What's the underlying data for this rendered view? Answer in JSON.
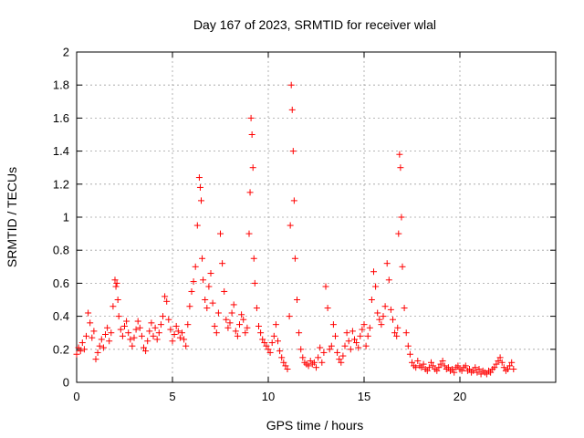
{
  "chart_data": {
    "type": "scatter",
    "title": "Day 167 of 2023, SRMTID for receiver wlal",
    "xlabel": "GPS time / hours",
    "ylabel": "SRMTID / TECUs",
    "xlim": [
      0,
      25
    ],
    "ylim": [
      0,
      2
    ],
    "xticks": [
      0,
      5,
      10,
      15,
      20
    ],
    "yticks": [
      0,
      0.2,
      0.4,
      0.6,
      0.8,
      1,
      1.2,
      1.4,
      1.6,
      1.8,
      2
    ],
    "ytick_labels": [
      "0",
      "0.2",
      "0.4",
      "0.6",
      "0.8",
      "1",
      "1.2",
      "1.4",
      "1.6",
      "1.8",
      "2"
    ],
    "xtick_labels": [
      "0",
      "5",
      "10",
      "15",
      "20"
    ],
    "grid": true,
    "marker": "plus",
    "marker_color": "#ff0000",
    "series": [
      {
        "name": "SRMTID",
        "x": [
          0.0,
          0.1,
          0.2,
          0.3,
          0.4,
          0.5,
          0.6,
          0.7,
          0.8,
          0.9,
          1.0,
          1.1,
          1.2,
          1.3,
          1.4,
          1.5,
          1.6,
          1.7,
          1.8,
          1.9,
          2.0,
          2.05,
          2.1,
          2.15,
          2.2,
          2.3,
          2.4,
          2.5,
          2.6,
          2.7,
          2.8,
          2.9,
          3.0,
          3.1,
          3.2,
          3.3,
          3.4,
          3.5,
          3.6,
          3.7,
          3.8,
          3.9,
          4.0,
          4.1,
          4.2,
          4.3,
          4.4,
          4.5,
          4.6,
          4.7,
          4.8,
          4.9,
          5.0,
          5.1,
          5.2,
          5.3,
          5.4,
          5.5,
          5.6,
          5.7,
          5.8,
          5.9,
          6.0,
          6.1,
          6.2,
          6.3,
          6.4,
          6.45,
          6.5,
          6.55,
          6.6,
          6.7,
          6.8,
          6.9,
          7.0,
          7.1,
          7.2,
          7.3,
          7.4,
          7.5,
          7.6,
          7.7,
          7.8,
          7.9,
          8.0,
          8.1,
          8.2,
          8.3,
          8.4,
          8.5,
          8.6,
          8.7,
          8.8,
          8.9,
          9.0,
          9.05,
          9.1,
          9.15,
          9.2,
          9.25,
          9.3,
          9.4,
          9.5,
          9.6,
          9.7,
          9.8,
          9.9,
          10.0,
          10.1,
          10.2,
          10.3,
          10.4,
          10.5,
          10.6,
          10.7,
          10.8,
          10.9,
          11.0,
          11.1,
          11.15,
          11.2,
          11.25,
          11.3,
          11.35,
          11.4,
          11.5,
          11.6,
          11.7,
          11.8,
          11.9,
          12.0,
          12.1,
          12.2,
          12.3,
          12.4,
          12.5,
          12.6,
          12.7,
          12.8,
          12.9,
          13.0,
          13.1,
          13.2,
          13.3,
          13.4,
          13.5,
          13.6,
          13.7,
          13.8,
          13.9,
          14.0,
          14.1,
          14.2,
          14.3,
          14.4,
          14.5,
          14.6,
          14.7,
          14.8,
          14.9,
          15.0,
          15.1,
          15.2,
          15.3,
          15.4,
          15.5,
          15.6,
          15.7,
          15.8,
          15.9,
          16.0,
          16.1,
          16.2,
          16.3,
          16.4,
          16.5,
          16.6,
          16.7,
          16.75,
          16.8,
          16.85,
          16.9,
          16.95,
          17.0,
          17.1,
          17.2,
          17.3,
          17.4,
          17.5,
          17.6,
          17.7,
          17.8,
          17.9,
          18.0,
          18.1,
          18.2,
          18.3,
          18.4,
          18.5,
          18.6,
          18.7,
          18.8,
          18.9,
          19.0,
          19.1,
          19.2,
          19.3,
          19.4,
          19.5,
          19.6,
          19.7,
          19.8,
          19.9,
          20.0,
          20.1,
          20.2,
          20.3,
          20.4,
          20.5,
          20.6,
          20.7,
          20.8,
          20.9,
          21.0,
          21.1,
          21.2,
          21.3,
          21.4,
          21.5,
          21.6,
          21.7,
          21.8,
          21.9,
          22.0,
          22.1,
          22.2,
          22.3,
          22.4,
          22.5,
          22.6,
          22.7,
          22.8
        ],
        "y": [
          0.17,
          0.21,
          0.19,
          0.24,
          0.2,
          0.28,
          0.42,
          0.36,
          0.27,
          0.31,
          0.14,
          0.18,
          0.22,
          0.26,
          0.21,
          0.29,
          0.33,
          0.25,
          0.3,
          0.46,
          0.62,
          0.58,
          0.6,
          0.5,
          0.4,
          0.32,
          0.28,
          0.34,
          0.37,
          0.3,
          0.26,
          0.22,
          0.27,
          0.32,
          0.37,
          0.33,
          0.28,
          0.21,
          0.19,
          0.25,
          0.31,
          0.36,
          0.28,
          0.33,
          0.26,
          0.3,
          0.35,
          0.4,
          0.52,
          0.49,
          0.38,
          0.32,
          0.25,
          0.29,
          0.34,
          0.31,
          0.27,
          0.3,
          0.26,
          0.22,
          0.35,
          0.46,
          0.55,
          0.61,
          0.7,
          0.95,
          1.24,
          1.18,
          1.1,
          0.75,
          0.62,
          0.5,
          0.45,
          0.58,
          0.66,
          0.48,
          0.34,
          0.3,
          0.42,
          0.9,
          0.72,
          0.55,
          0.38,
          0.33,
          0.36,
          0.42,
          0.47,
          0.31,
          0.28,
          0.35,
          0.41,
          0.38,
          0.3,
          0.33,
          0.9,
          1.15,
          1.6,
          1.5,
          1.3,
          0.75,
          0.6,
          0.45,
          0.34,
          0.3,
          0.26,
          0.24,
          0.22,
          0.2,
          0.18,
          0.24,
          0.28,
          0.35,
          0.25,
          0.19,
          0.15,
          0.12,
          0.1,
          0.08,
          0.4,
          0.95,
          1.8,
          1.65,
          1.4,
          1.1,
          0.75,
          0.5,
          0.3,
          0.2,
          0.15,
          0.12,
          0.11,
          0.1,
          0.13,
          0.11,
          0.12,
          0.09,
          0.15,
          0.21,
          0.12,
          0.18,
          0.58,
          0.45,
          0.2,
          0.22,
          0.35,
          0.28,
          0.18,
          0.14,
          0.12,
          0.16,
          0.22,
          0.3,
          0.25,
          0.2,
          0.31,
          0.26,
          0.24,
          0.21,
          0.28,
          0.32,
          0.35,
          0.22,
          0.28,
          0.33,
          0.5,
          0.67,
          0.58,
          0.42,
          0.38,
          0.35,
          0.4,
          0.46,
          0.72,
          0.62,
          0.44,
          0.38,
          0.3,
          0.28,
          0.33,
          0.9,
          1.38,
          1.3,
          1.0,
          0.7,
          0.45,
          0.3,
          0.22,
          0.17,
          0.12,
          0.1,
          0.09,
          0.13,
          0.1,
          0.09,
          0.11,
          0.08,
          0.07,
          0.09,
          0.12,
          0.1,
          0.08,
          0.07,
          0.09,
          0.11,
          0.13,
          0.1,
          0.08,
          0.09,
          0.07,
          0.08,
          0.06,
          0.09,
          0.1,
          0.08,
          0.07,
          0.09,
          0.1,
          0.07,
          0.08,
          0.06,
          0.07,
          0.09,
          0.06,
          0.08,
          0.05,
          0.07,
          0.06,
          0.05,
          0.07,
          0.06,
          0.08,
          0.09,
          0.11,
          0.13,
          0.15,
          0.12,
          0.09,
          0.07,
          0.08,
          0.1,
          0.12,
          0.08
        ]
      }
    ]
  }
}
